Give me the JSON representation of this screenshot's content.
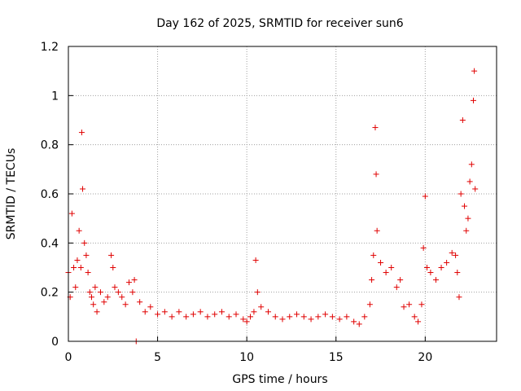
{
  "chart_data": {
    "type": "scatter",
    "title": "Day 162 of 2025, SRMTID for receiver sun6",
    "xlabel": "GPS time / hours",
    "ylabel": "SRMTID / TECUs",
    "xlim": [
      0,
      24
    ],
    "ylim": [
      0,
      1.2
    ],
    "x_ticks": [
      "0",
      "5",
      "10",
      "15",
      "20"
    ],
    "y_ticks": [
      "0",
      "0.2",
      "0.4",
      "0.6",
      "0.8",
      "1",
      "1.2"
    ],
    "grid": true,
    "marker": "plus",
    "color": "#e00000",
    "series": [
      {
        "name": "sun6",
        "x": [
          0.0,
          0.1,
          0.2,
          0.3,
          0.4,
          0.5,
          0.6,
          0.7,
          0.75,
          0.8,
          0.9,
          1.0,
          1.1,
          1.2,
          1.3,
          1.4,
          1.5,
          1.6,
          1.8,
          2.0,
          2.2,
          2.4,
          2.5,
          2.6,
          2.8,
          3.0,
          3.2,
          3.4,
          3.6,
          3.7,
          3.8,
          4.0,
          4.3,
          4.6,
          5.0,
          5.4,
          5.8,
          6.2,
          6.6,
          7.0,
          7.4,
          7.8,
          8.2,
          8.6,
          9.0,
          9.4,
          9.8,
          10.0,
          10.2,
          10.4,
          10.5,
          10.6,
          10.8,
          11.2,
          11.6,
          12.0,
          12.4,
          12.8,
          13.2,
          13.6,
          14.0,
          14.4,
          14.8,
          15.2,
          15.6,
          16.0,
          16.3,
          16.6,
          16.9,
          17.0,
          17.1,
          17.2,
          17.25,
          17.3,
          17.5,
          17.8,
          18.1,
          18.4,
          18.6,
          18.8,
          19.1,
          19.4,
          19.6,
          19.8,
          19.9,
          20.0,
          20.1,
          20.3,
          20.6,
          20.9,
          21.2,
          21.5,
          21.7,
          21.8,
          21.9,
          22.0,
          22.1,
          22.2,
          22.3,
          22.4,
          22.5,
          22.6,
          22.7,
          22.75,
          22.8
        ],
        "y": [
          0.28,
          0.18,
          0.52,
          0.3,
          0.22,
          0.33,
          0.45,
          0.3,
          0.85,
          0.62,
          0.4,
          0.35,
          0.28,
          0.2,
          0.18,
          0.15,
          0.22,
          0.12,
          0.2,
          0.16,
          0.18,
          0.35,
          0.3,
          0.22,
          0.2,
          0.18,
          0.15,
          0.24,
          0.2,
          0.25,
          0.0,
          0.16,
          0.12,
          0.14,
          0.11,
          0.12,
          0.1,
          0.12,
          0.1,
          0.11,
          0.12,
          0.1,
          0.11,
          0.12,
          0.1,
          0.11,
          0.09,
          0.08,
          0.1,
          0.12,
          0.33,
          0.2,
          0.14,
          0.12,
          0.1,
          0.09,
          0.1,
          0.11,
          0.1,
          0.09,
          0.1,
          0.11,
          0.1,
          0.09,
          0.1,
          0.08,
          0.07,
          0.1,
          0.15,
          0.25,
          0.35,
          0.87,
          0.68,
          0.45,
          0.32,
          0.28,
          0.3,
          0.22,
          0.25,
          0.14,
          0.15,
          0.1,
          0.08,
          0.15,
          0.38,
          0.59,
          0.3,
          0.28,
          0.25,
          0.3,
          0.32,
          0.36,
          0.35,
          0.28,
          0.18,
          0.6,
          0.9,
          0.55,
          0.45,
          0.5,
          0.65,
          0.72,
          0.98,
          1.1,
          0.62
        ]
      }
    ]
  }
}
